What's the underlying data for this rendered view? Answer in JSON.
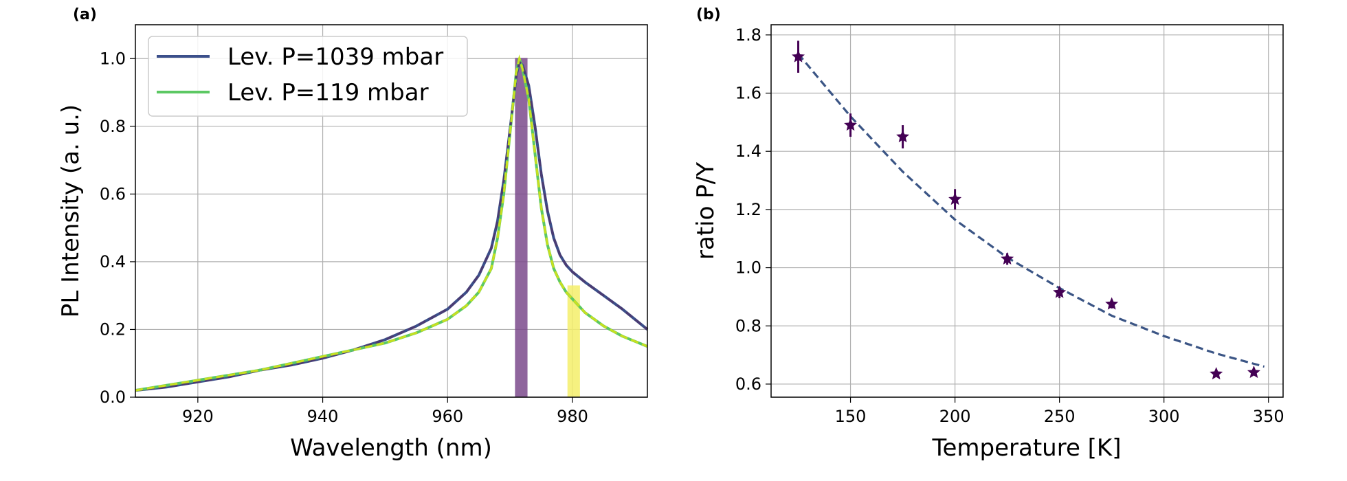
{
  "chart_data": [
    {
      "panel": "(a)",
      "type": "line",
      "xlabel": "Wavelength (nm)",
      "ylabel": "PL Intensity (a. u.)",
      "xlim": [
        910,
        992
      ],
      "ylim": [
        0,
        1.1
      ],
      "xticks": [
        920,
        940,
        960,
        980
      ],
      "yticks": [
        0.0,
        0.2,
        0.4,
        0.6,
        0.8,
        1.0
      ],
      "grid": true,
      "legend_position": "top-left",
      "shaded_bands": [
        {
          "name": "P band",
          "x_from": 970.8,
          "x_to": 972.8,
          "color": "#7b4a8c",
          "opacity": 0.85
        },
        {
          "name": "Y band",
          "x_from": 979.2,
          "x_to": 981.2,
          "color": "#f5ef6a",
          "opacity": 0.85
        }
      ],
      "series": [
        {
          "name": "Lev. P=1039 mbar",
          "color": "#3b4f8a",
          "fit_color": "#4b3b72",
          "x": [
            910,
            915,
            920,
            925,
            930,
            935,
            940,
            945,
            950,
            955,
            960,
            963,
            965,
            967,
            968,
            969,
            970,
            971,
            971.5,
            972,
            973,
            974,
            975,
            976,
            977,
            978,
            979,
            980,
            982,
            985,
            988,
            992
          ],
          "values": [
            0.02,
            0.03,
            0.045,
            0.06,
            0.08,
            0.095,
            0.115,
            0.14,
            0.17,
            0.21,
            0.26,
            0.31,
            0.36,
            0.44,
            0.52,
            0.64,
            0.79,
            0.95,
            0.99,
            0.98,
            0.92,
            0.8,
            0.66,
            0.55,
            0.47,
            0.42,
            0.39,
            0.37,
            0.34,
            0.3,
            0.26,
            0.2
          ]
        },
        {
          "name": "Lev. P=119 mbar",
          "color": "#5cc863",
          "fit_color": "#c7e020",
          "x": [
            910,
            915,
            920,
            925,
            930,
            935,
            940,
            945,
            950,
            955,
            960,
            963,
            965,
            967,
            968,
            969,
            970,
            971,
            971.5,
            972,
            973,
            974,
            975,
            976,
            977,
            978,
            979,
            980,
            982,
            985,
            988,
            992
          ],
          "values": [
            0.02,
            0.035,
            0.05,
            0.065,
            0.08,
            0.1,
            0.12,
            0.14,
            0.16,
            0.19,
            0.23,
            0.27,
            0.31,
            0.38,
            0.47,
            0.6,
            0.78,
            0.96,
            1.0,
            0.97,
            0.88,
            0.72,
            0.56,
            0.45,
            0.38,
            0.34,
            0.31,
            0.29,
            0.25,
            0.21,
            0.18,
            0.15
          ]
        }
      ]
    },
    {
      "panel": "(b)",
      "type": "scatter",
      "xlabel": "Temperature [K]",
      "ylabel": "ratio P/Y",
      "xlim": [
        112,
        357
      ],
      "ylim": [
        0.555,
        1.835
      ],
      "xticks": [
        150,
        200,
        250,
        300,
        350
      ],
      "yticks": [
        0.6,
        0.8,
        1.0,
        1.2,
        1.4,
        1.6,
        1.8
      ],
      "grid": true,
      "points": {
        "name": "measured ratio",
        "color": "#440154",
        "x": [
          125,
          150,
          175,
          200,
          225,
          250,
          275,
          325,
          343
        ],
        "y": [
          1.725,
          1.49,
          1.45,
          1.235,
          1.03,
          0.915,
          0.875,
          0.635,
          0.64
        ],
        "yerr": [
          0.055,
          0.04,
          0.04,
          0.035,
          0.02,
          0.02,
          0.015,
          0.01,
          0.01
        ]
      },
      "fit": {
        "name": "fit",
        "color": "#3b5585",
        "x": [
          125,
          150,
          175,
          200,
          225,
          250,
          275,
          300,
          325,
          348
        ],
        "y": [
          1.735,
          1.52,
          1.33,
          1.165,
          1.035,
          0.93,
          0.835,
          0.765,
          0.705,
          0.66
        ]
      }
    }
  ]
}
